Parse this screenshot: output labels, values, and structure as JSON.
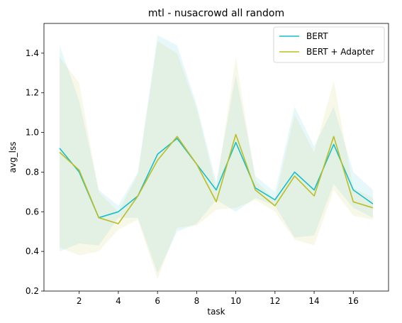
{
  "chart_data": {
    "type": "line",
    "title": "mtl - nusacrowd all random",
    "xlabel": "task",
    "ylabel": "avg_lss",
    "xlim": [
      0.2,
      17.8
    ],
    "ylim": [
      0.2,
      1.55
    ],
    "xticks": [
      2,
      4,
      6,
      8,
      10,
      12,
      14,
      16
    ],
    "yticks": [
      0.2,
      0.4,
      0.6,
      0.8,
      1.0,
      1.2,
      1.4
    ],
    "ytick_labels": [
      "0.2",
      "0.4",
      "0.6",
      "0.8",
      "1.0",
      "1.2",
      "1.4"
    ],
    "grid": false,
    "legend_position": "top-right",
    "x": [
      1,
      2,
      3,
      4,
      5,
      6,
      7,
      8,
      9,
      10,
      11,
      12,
      13,
      14,
      15,
      16,
      17
    ],
    "series": [
      {
        "name": "BERT",
        "color": "#17becf",
        "values": [
          0.92,
          0.8,
          0.57,
          0.6,
          0.68,
          0.89,
          0.97,
          0.84,
          0.71,
          0.95,
          0.72,
          0.66,
          0.8,
          0.71,
          0.94,
          0.71,
          0.64
        ],
        "upper": [
          1.44,
          1.16,
          0.71,
          0.63,
          0.8,
          1.49,
          1.44,
          1.14,
          0.75,
          1.29,
          0.78,
          0.7,
          1.13,
          0.93,
          1.13,
          0.8,
          0.71
        ],
        "lower": [
          0.4,
          0.44,
          0.43,
          0.57,
          0.57,
          0.29,
          0.5,
          0.54,
          0.66,
          0.6,
          0.67,
          0.63,
          0.47,
          0.48,
          0.74,
          0.62,
          0.57
        ]
      },
      {
        "name": "BERT + Adapter",
        "color": "#bcbd22",
        "values": [
          0.9,
          0.81,
          0.57,
          0.54,
          0.68,
          0.86,
          0.98,
          0.84,
          0.65,
          0.99,
          0.71,
          0.63,
          0.78,
          0.68,
          0.98,
          0.65,
          0.62
        ],
        "upper": [
          1.38,
          1.25,
          0.7,
          0.6,
          0.79,
          1.46,
          1.4,
          1.12,
          0.72,
          1.38,
          0.76,
          0.66,
          1.09,
          0.9,
          1.26,
          0.72,
          0.67
        ],
        "lower": [
          0.42,
          0.38,
          0.4,
          0.51,
          0.56,
          0.26,
          0.52,
          0.53,
          0.61,
          0.62,
          0.66,
          0.6,
          0.46,
          0.43,
          0.71,
          0.58,
          0.56
        ]
      }
    ]
  }
}
